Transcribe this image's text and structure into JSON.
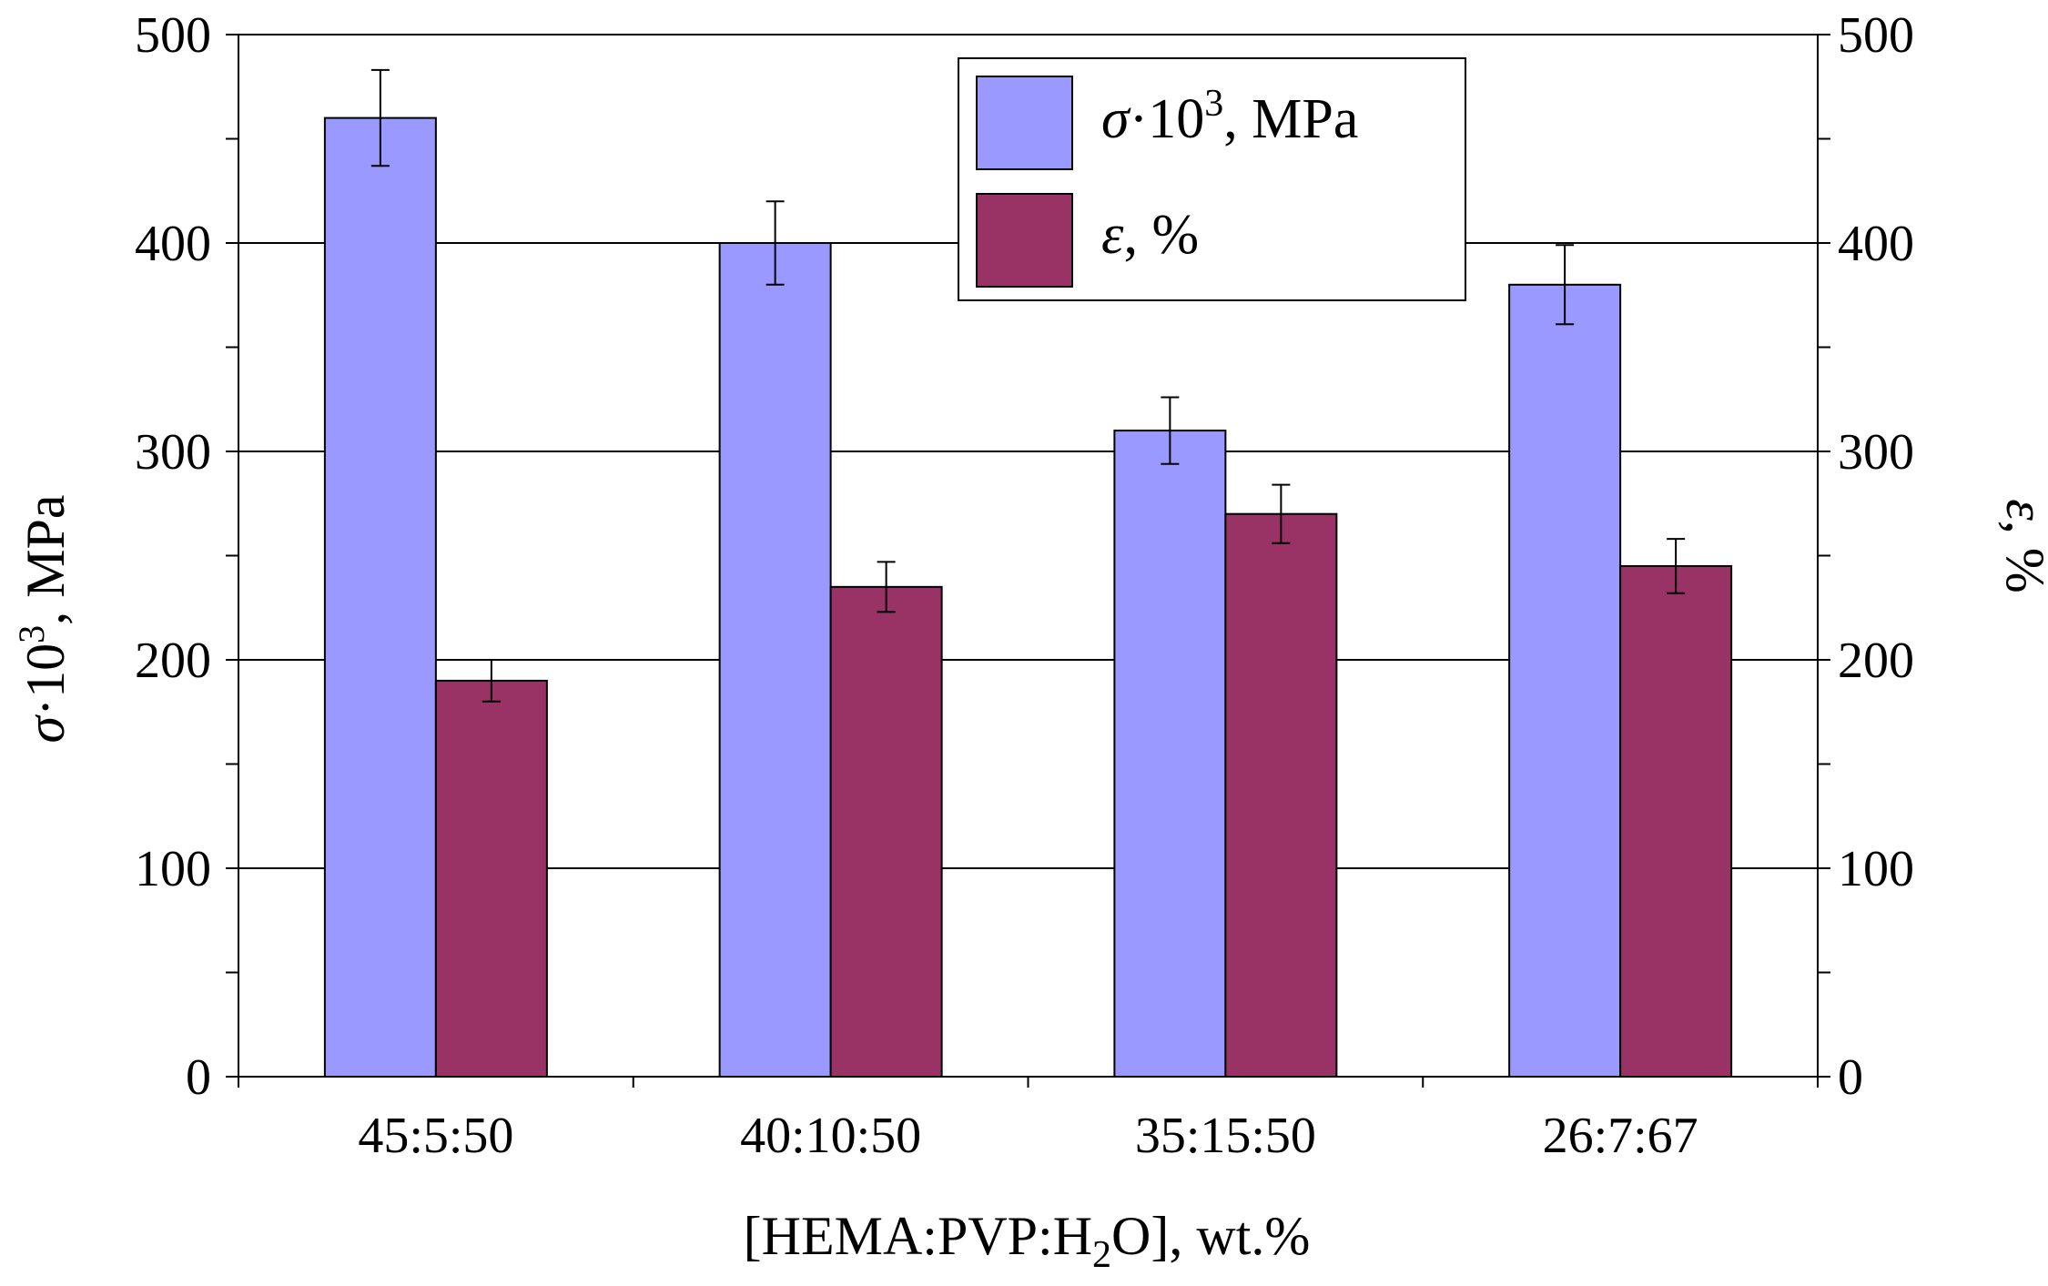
{
  "chart_data": {
    "type": "bar",
    "categories": [
      "45:5:50",
      "40:10:50",
      "35:15:50",
      "26:7:67"
    ],
    "series": [
      {
        "name": "σ·10³, MPa",
        "legend_symbol": "σ",
        "legend_middle": "·10",
        "legend_sup": "3",
        "legend_suffix": ", MPa",
        "axis": "left",
        "color": "#9999FF",
        "values": [
          460,
          400,
          310,
          380
        ],
        "errors": [
          23,
          20,
          16,
          19
        ]
      },
      {
        "name": "ε, %",
        "legend_symbol": "ε",
        "legend_suffix": ", %",
        "axis": "right",
        "color": "#993366",
        "values": [
          190,
          235,
          270,
          245
        ],
        "errors": [
          10,
          12,
          14,
          13
        ]
      }
    ],
    "left_axis": {
      "label_symbol": "σ",
      "label_middle": "·10",
      "label_sup": "3",
      "label_suffix": ", MPa",
      "ylim": [
        0,
        500
      ],
      "ticks": [
        0,
        100,
        200,
        300,
        400,
        500
      ]
    },
    "right_axis": {
      "label_symbol": "ε",
      "label_suffix": ", %",
      "ylim": [
        0,
        500
      ],
      "ticks": [
        0,
        100,
        200,
        300,
        400,
        500
      ]
    },
    "x_axis": {
      "label_pre": "[HEMA:PVP:H",
      "label_sub": "2",
      "label_post": "O], wt.%"
    },
    "grid": true,
    "legend_position": "top-center"
  }
}
